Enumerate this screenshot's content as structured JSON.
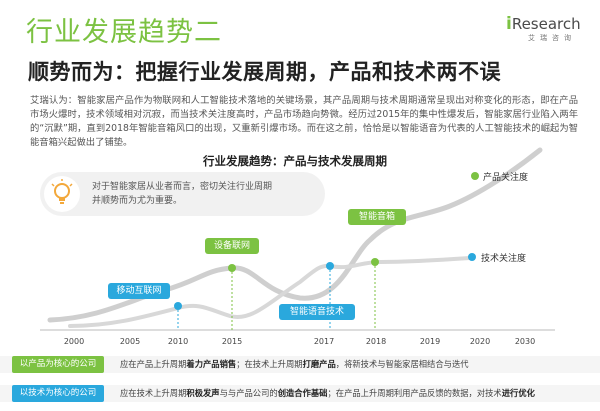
{
  "page": {
    "title": "行业发展趋势二",
    "subtitle": "顺势而为：把握行业发展周期，产品和技术两不误",
    "paragraph": "艾瑞认为：智能家居产品作为物联网和人工智能技术落地的关键场景，其产品周期与技术周期通常呈现出对称变化的形态，即在产品市场火爆时，技术领域相对沉寂，而当技术关注度高时，产品市场趋向势微。经历过2015年的集中性爆发后，智能家居行业陷入两年的“沉默”期，直到2018年智能音箱风口的出现，又重新引爆市场。而在这之前，恰恰是以智能语音为代表的人工智能技术的崛起为智能音箱兴起做出了铺垫。"
  },
  "logo": {
    "text_i": "i",
    "text_rest": "Research",
    "subtext": "艾瑞咨询"
  },
  "chart": {
    "title": "行业发展趋势：产品与技术发展周期",
    "note": "对于智能家居从业者而言，密切关注行业周期并顺势而为尤为重要。",
    "colors": {
      "product": "#7cc242",
      "tech": "#2aa8dd",
      "curve": "#cfcfcf"
    },
    "legend": {
      "product": "产品关注度",
      "tech": "技术关注度"
    },
    "tags": {
      "mobile_internet": "移动互联网",
      "iot": "设备联网",
      "voice_tech": "智能语音技术",
      "smart_speaker": "智能音箱"
    },
    "x_ticks": [
      "2000",
      "2005",
      "2010",
      "2015",
      "2017",
      "2018",
      "2019",
      "2020",
      "2030"
    ]
  },
  "rows": [
    {
      "label": "以产品为核心的公司",
      "color": "#7cc242",
      "text_a": "应在产品上升周期",
      "strong_a": "着力产品销售",
      "text_b": "；在技术上升周期",
      "strong_b": "打磨产品",
      "text_c": "，将新技术与智能家居相结合与迭代"
    },
    {
      "label": "以技术为核心的公司",
      "color": "#2aa8dd",
      "text_a": "应在技术上升周期",
      "strong_a": "积极发声",
      "text_b": "与与产品公司的",
      "strong_b": "创造合作基础",
      "text_c": "；在产品上升周期利用产品反馈的数据，对技术",
      "strong_c": "进行优化"
    }
  ]
}
